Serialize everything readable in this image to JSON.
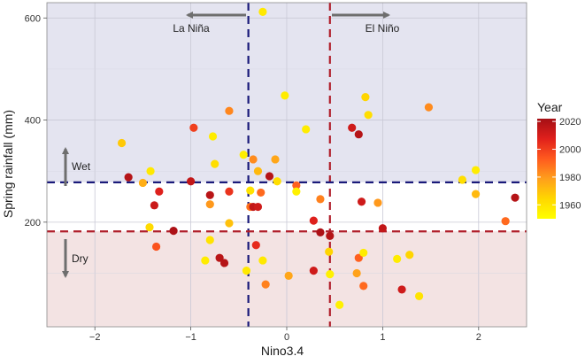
{
  "chart_data": {
    "type": "scatter",
    "xlabel": "Nino3.4",
    "ylabel": "Spring rainfall (mm)",
    "xlim": [
      -2.5,
      2.5
    ],
    "ylim": [
      -5,
      630
    ],
    "x_ticks": [
      -2,
      -1,
      0,
      1,
      2
    ],
    "y_ticks": [
      200,
      400,
      600
    ],
    "x_tick_labels": [
      "−2",
      "−1",
      "0",
      "1",
      "2"
    ],
    "y_tick_labels": [
      "200",
      "400",
      "600"
    ],
    "grid": true,
    "colorbar": {
      "title": "Year",
      "ticks": [
        1960,
        1980,
        2000,
        2020
      ],
      "tick_labels": [
        "1960",
        "1980",
        "2000",
        "2020"
      ],
      "min": 1950,
      "max": 2022,
      "colors": [
        "#ffff00",
        "#ffd700",
        "#ff9f1c",
        "#ff5a1e",
        "#e0201c",
        "#a50f15"
      ]
    },
    "regions": [
      {
        "name": "wet",
        "y_from": 278,
        "y_to": 630,
        "color": "#e4e4f0"
      },
      {
        "name": "dry",
        "y_from": -5,
        "y_to": 182,
        "color": "#f3e3e3"
      }
    ],
    "reference_lines": [
      {
        "orientation": "vertical",
        "value": -0.4,
        "color": "#1a1a7a"
      },
      {
        "orientation": "vertical",
        "value": 0.45,
        "color": "#b01e2a"
      },
      {
        "orientation": "horizontal",
        "value": 278,
        "color": "#1a1a7a"
      },
      {
        "orientation": "horizontal",
        "value": 182,
        "color": "#b01e2a"
      }
    ],
    "annotations": [
      {
        "text": "La Niña"
      },
      {
        "text": "El Niño"
      },
      {
        "text": "Wet"
      },
      {
        "text": "Dry"
      }
    ],
    "points": [
      {
        "x": -0.25,
        "y": 612,
        "year": 1958
      },
      {
        "x": -1.72,
        "y": 355,
        "year": 1968
      },
      {
        "x": -1.42,
        "y": 300,
        "year": 1958
      },
      {
        "x": -1.65,
        "y": 288,
        "year": 2018
      },
      {
        "x": -1.5,
        "y": 277,
        "year": 1975
      },
      {
        "x": -1.33,
        "y": 260,
        "year": 2008
      },
      {
        "x": -1.38,
        "y": 233,
        "year": 2013
      },
      {
        "x": -1.43,
        "y": 190,
        "year": 1963
      },
      {
        "x": -1.18,
        "y": 183,
        "year": 2020
      },
      {
        "x": -1.36,
        "y": 152,
        "year": 1995
      },
      {
        "x": -0.97,
        "y": 385,
        "year": 2000
      },
      {
        "x": -1.0,
        "y": 280,
        "year": 2015
      },
      {
        "x": -0.8,
        "y": 253,
        "year": 2017
      },
      {
        "x": -0.8,
        "y": 235,
        "year": 1980
      },
      {
        "x": -0.77,
        "y": 368,
        "year": 1957
      },
      {
        "x": -0.75,
        "y": 314,
        "year": 1962
      },
      {
        "x": -0.8,
        "y": 165,
        "year": 1960
      },
      {
        "x": -0.85,
        "y": 125,
        "year": 1957
      },
      {
        "x": -0.7,
        "y": 130,
        "year": 2017
      },
      {
        "x": -0.65,
        "y": 120,
        "year": 2018
      },
      {
        "x": -0.6,
        "y": 418,
        "year": 1984
      },
      {
        "x": -0.6,
        "y": 260,
        "year": 2003
      },
      {
        "x": -0.6,
        "y": 198,
        "year": 1970
      },
      {
        "x": -0.45,
        "y": 332,
        "year": 1956
      },
      {
        "x": -0.42,
        "y": 105,
        "year": 1958
      },
      {
        "x": -0.35,
        "y": 323,
        "year": 1983
      },
      {
        "x": -0.38,
        "y": 262,
        "year": 1960
      },
      {
        "x": -0.38,
        "y": 230,
        "year": 1988
      },
      {
        "x": -0.35,
        "y": 230,
        "year": 2015
      },
      {
        "x": -0.3,
        "y": 230,
        "year": 2012
      },
      {
        "x": -0.3,
        "y": 300,
        "year": 1972
      },
      {
        "x": -0.32,
        "y": 155,
        "year": 2005
      },
      {
        "x": -0.25,
        "y": 125,
        "year": 1958
      },
      {
        "x": -0.27,
        "y": 258,
        "year": 1990
      },
      {
        "x": -0.22,
        "y": 78,
        "year": 1985
      },
      {
        "x": -0.18,
        "y": 290,
        "year": 2018
      },
      {
        "x": -0.12,
        "y": 323,
        "year": 1977
      },
      {
        "x": -0.1,
        "y": 280,
        "year": 1962
      },
      {
        "x": -0.02,
        "y": 448,
        "year": 1957
      },
      {
        "x": 0.02,
        "y": 95,
        "year": 1977
      },
      {
        "x": 0.1,
        "y": 272,
        "year": 1992
      },
      {
        "x": 0.1,
        "y": 260,
        "year": 1955
      },
      {
        "x": 0.2,
        "y": 382,
        "year": 1957
      },
      {
        "x": 0.28,
        "y": 203,
        "year": 2008
      },
      {
        "x": 0.28,
        "y": 105,
        "year": 2012
      },
      {
        "x": 0.35,
        "y": 245,
        "year": 1985
      },
      {
        "x": 0.35,
        "y": 180,
        "year": 2020
      },
      {
        "x": 0.45,
        "y": 173,
        "year": 2018
      },
      {
        "x": 0.44,
        "y": 142,
        "year": 1965
      },
      {
        "x": 0.45,
        "y": 98,
        "year": 1955
      },
      {
        "x": 0.55,
        "y": 38,
        "year": 1955
      },
      {
        "x": 0.68,
        "y": 385,
        "year": 2012
      },
      {
        "x": 0.75,
        "y": 372,
        "year": 2018
      },
      {
        "x": 0.78,
        "y": 240,
        "year": 2012
      },
      {
        "x": 0.75,
        "y": 130,
        "year": 1992
      },
      {
        "x": 0.73,
        "y": 100,
        "year": 1978
      },
      {
        "x": 0.8,
        "y": 140,
        "year": 1957
      },
      {
        "x": 0.8,
        "y": 75,
        "year": 1990
      },
      {
        "x": 0.82,
        "y": 445,
        "year": 1965
      },
      {
        "x": 0.85,
        "y": 410,
        "year": 1962
      },
      {
        "x": 0.95,
        "y": 238,
        "year": 1980
      },
      {
        "x": 1.0,
        "y": 188,
        "year": 2015
      },
      {
        "x": 1.15,
        "y": 128,
        "year": 1957
      },
      {
        "x": 1.2,
        "y": 68,
        "year": 2012
      },
      {
        "x": 1.28,
        "y": 136,
        "year": 1965
      },
      {
        "x": 1.38,
        "y": 55,
        "year": 1960
      },
      {
        "x": 1.48,
        "y": 425,
        "year": 1983
      },
      {
        "x": 1.83,
        "y": 283,
        "year": 1962
      },
      {
        "x": 1.97,
        "y": 302,
        "year": 1957
      },
      {
        "x": 1.97,
        "y": 255,
        "year": 1972
      },
      {
        "x": 2.28,
        "y": 202,
        "year": 1990
      },
      {
        "x": 2.38,
        "y": 248,
        "year": 2018
      }
    ]
  }
}
